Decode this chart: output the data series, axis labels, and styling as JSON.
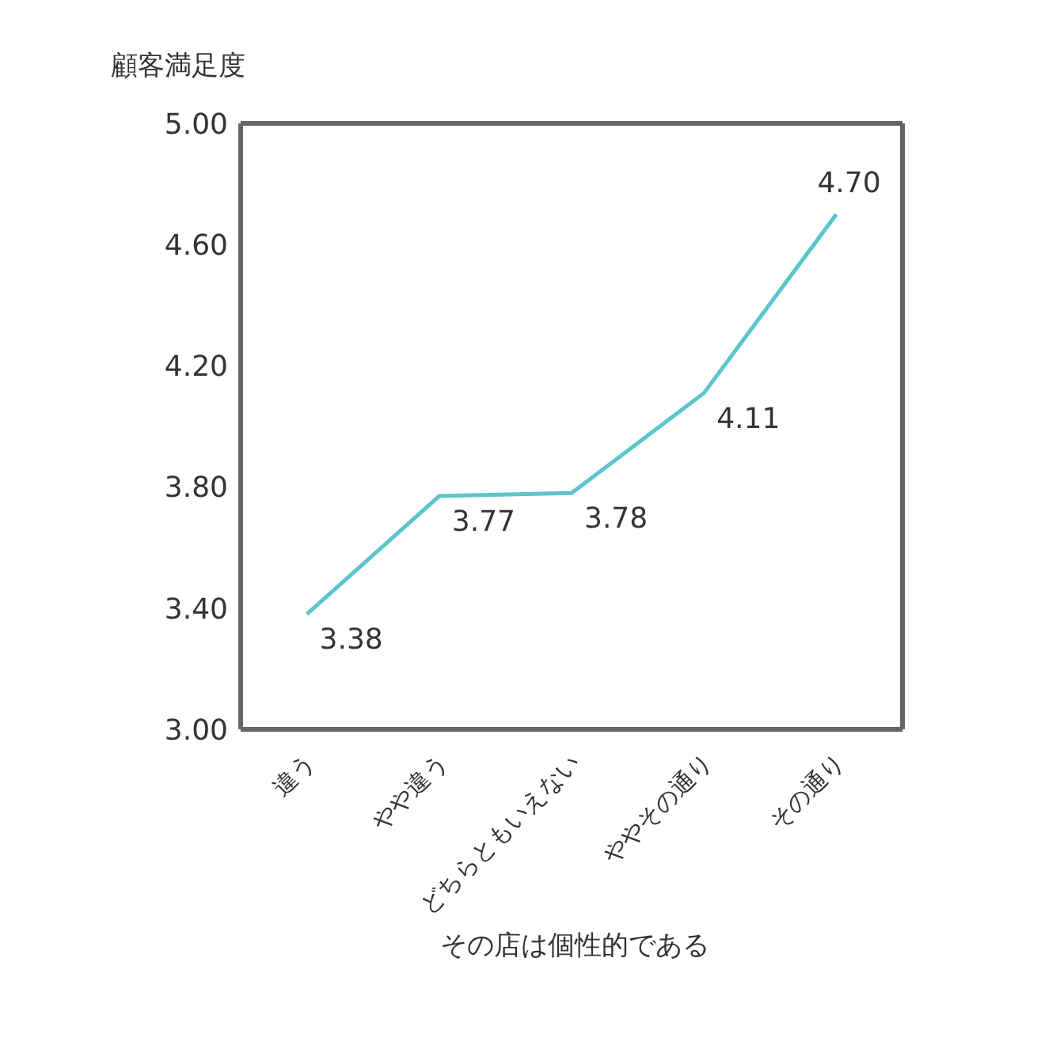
{
  "chart_data": {
    "type": "line",
    "xlabel": "その店は個性的である",
    "ylabel": "顧客満足度",
    "categories": [
      "違う",
      "やや違う",
      "どちらともいえない",
      "ややその通り",
      "その通り"
    ],
    "series": [
      {
        "color": "#5bc4cc",
        "values": [
          3.38,
          3.77,
          3.78,
          4.11,
          4.7
        ],
        "value_labels": [
          "3.38",
          "3.77",
          "3.78",
          "4.11",
          "4.70"
        ]
      }
    ],
    "ylim": [
      3,
      5
    ],
    "yticks": [
      {
        "value": 3,
        "label": "3.00"
      },
      {
        "value": 3.4,
        "label": "3.40"
      },
      {
        "value": 3.8,
        "label": "3.80"
      },
      {
        "value": 4.2,
        "label": "4.20"
      },
      {
        "value": 4.6,
        "label": "4.60"
      },
      {
        "value": 5,
        "label": "5.00"
      }
    ],
    "grid": false,
    "legend": false,
    "marker": "none",
    "line_style": "solid"
  }
}
